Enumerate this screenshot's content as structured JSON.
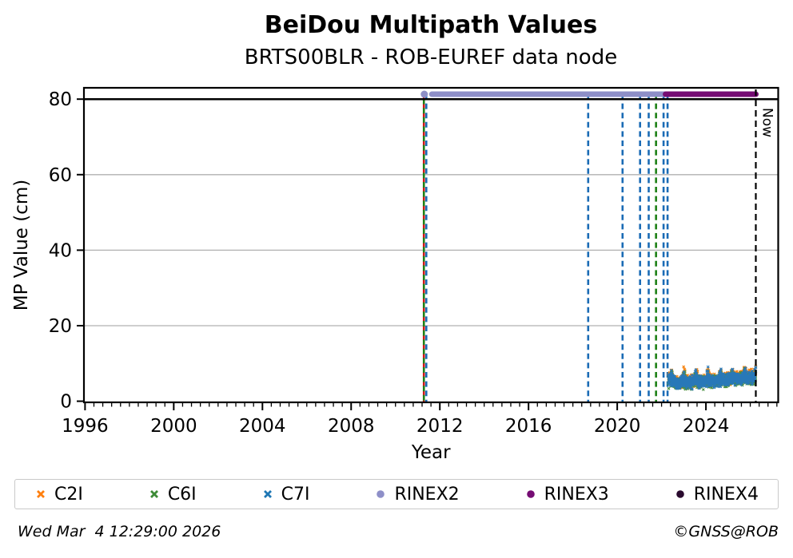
{
  "header": {
    "title": "BeiDou Multipath Values",
    "subtitle": "BRTS00BLR - ROB-EUREF data node"
  },
  "chart_data": {
    "type": "scatter",
    "title": "BeiDou Multipath Values",
    "subtitle": "BRTS00BLR - ROB-EUREF data node",
    "xlabel": "Year",
    "ylabel": "MP Value (cm)",
    "xlim": [
      1995.95,
      2027.26
    ],
    "ylim": [
      -0.3,
      83.0
    ],
    "xticks": [
      1996,
      2000,
      2004,
      2008,
      2012,
      2016,
      2020,
      2024
    ],
    "yticks": [
      0,
      20,
      40,
      60,
      80
    ],
    "minor_xtick_step": 0.4,
    "grid_y": [
      20,
      40,
      60
    ],
    "grid_color": "#b0b0b0",
    "reference_line": {
      "y": 80,
      "color": "#000000"
    },
    "now_line": {
      "x": 2026.25,
      "label": "Now",
      "color": "#000000"
    },
    "rinex_segments": [
      {
        "name": "RINEX2",
        "color": "#8e8fc8",
        "y": 81.3,
        "dot_x": 2011.3,
        "x_start": 2011.64,
        "x_end": 2022.13
      },
      {
        "name": "RINEX3",
        "color": "#750c73",
        "y": 81.3,
        "x_start": 2022.18,
        "x_end": 2026.25
      }
    ],
    "event_lines": [
      {
        "x": 2011.28,
        "color": "#cf1616",
        "phase": 0
      },
      {
        "x": 2011.28,
        "color": "#1e8016",
        "phase": 6
      },
      {
        "x": 2011.39,
        "color": "#1a6bb5",
        "phase": 0
      },
      {
        "x": 2018.69,
        "color": "#1a6bb5",
        "phase": 0
      },
      {
        "x": 2020.24,
        "color": "#1a6bb5",
        "phase": 0
      },
      {
        "x": 2021.03,
        "color": "#1a6bb5",
        "phase": 0
      },
      {
        "x": 2021.42,
        "color": "#1a6bb5",
        "phase": 0
      },
      {
        "x": 2021.75,
        "color": "#1e8016",
        "phase": 0
      },
      {
        "x": 2022.09,
        "color": "#1a6bb5",
        "phase": 0
      },
      {
        "x": 2022.27,
        "color": "#1a6bb5",
        "phase": 0
      }
    ],
    "scatter_band": {
      "x_start": 2022.31,
      "x_end": 2026.25,
      "median_points": [
        [
          2022.33,
          5.3
        ],
        [
          2022.7,
          4.7
        ],
        [
          2023.2,
          5.0
        ],
        [
          2023.8,
          5.2
        ],
        [
          2024.4,
          5.4
        ],
        [
          2025.0,
          5.6
        ],
        [
          2025.6,
          6.0
        ],
        [
          2026.25,
          6.4
        ]
      ],
      "spread": 1.5,
      "spike_period": 0.55,
      "spike_amplitude": 2.6,
      "spike_phase": 2022.45,
      "value_range": [
        2.3,
        10.5
      ],
      "series": [
        {
          "name": "C2I",
          "color": "#f5820f",
          "offset": 0.35
        },
        {
          "name": "C6I",
          "color": "#4a8f3f",
          "offset": -0.25
        },
        {
          "name": "C7I",
          "color": "#2878b8",
          "offset": 0
        }
      ]
    }
  },
  "legend": {
    "items": [
      {
        "label": "C2I",
        "marker": "x",
        "color": "#ff7f0e"
      },
      {
        "label": "C6I",
        "marker": "x",
        "color": "#3d8b37"
      },
      {
        "label": "C7I",
        "marker": "x",
        "color": "#1f77b4"
      },
      {
        "label": "RINEX2",
        "marker": "circle",
        "color": "#8e8fc8"
      },
      {
        "label": "RINEX3",
        "marker": "circle",
        "color": "#750c73"
      },
      {
        "label": "RINEX4",
        "marker": "circle",
        "color": "#2a0a2e"
      }
    ]
  },
  "footer": {
    "timestamp": "Wed Mar  4 12:29:00 2026",
    "credit": "©GNSS@ROB"
  }
}
